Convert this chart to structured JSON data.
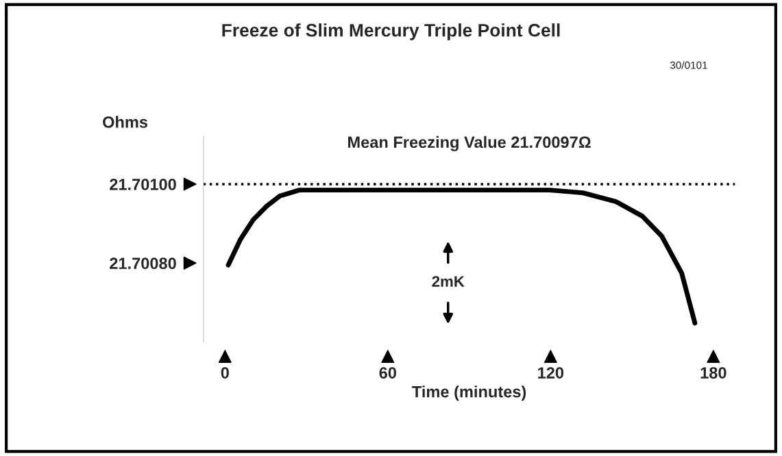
{
  "chart_data": {
    "type": "line",
    "title": "Freeze of Slim Mercury Triple Point Cell",
    "ylabel": "Ohms",
    "xlabel": "Time (minutes)",
    "x": [
      1.2,
      5.6,
      10.4,
      15.3,
      20.2,
      27.4,
      46.9,
      71.2,
      95.5,
      119.7,
      131.9,
      144,
      153.8,
      161,
      168.3,
      173.2
    ],
    "series": [
      {
        "color": "#000000",
        "values": [
          21.700795,
          21.700859,
          21.70091,
          21.700944,
          21.70097,
          21.700985,
          21.700985,
          21.700985,
          21.700985,
          21.700985,
          21.700978,
          21.700956,
          21.700919,
          21.700868,
          21.700775,
          21.700648
        ]
      }
    ],
    "xlim": [
      -8,
      188
    ],
    "ylim": [
      21.7006,
      21.70112
    ],
    "xticks": [
      0,
      60,
      120,
      180
    ],
    "yticks": [
      {
        "value": 21.7008,
        "label": "21.70080"
      },
      {
        "value": 21.701,
        "label": "21.70100"
      }
    ],
    "ref_lines": [
      {
        "axis": "y",
        "value": 21.701,
        "color": "#000000",
        "line_style": "dotted"
      }
    ],
    "annotations": [
      "30/0101",
      "Mean Freezing Value 21.70097Ω",
      "2mK"
    ],
    "grid": false,
    "legend": false,
    "marker": "none",
    "line_style": "solid"
  }
}
